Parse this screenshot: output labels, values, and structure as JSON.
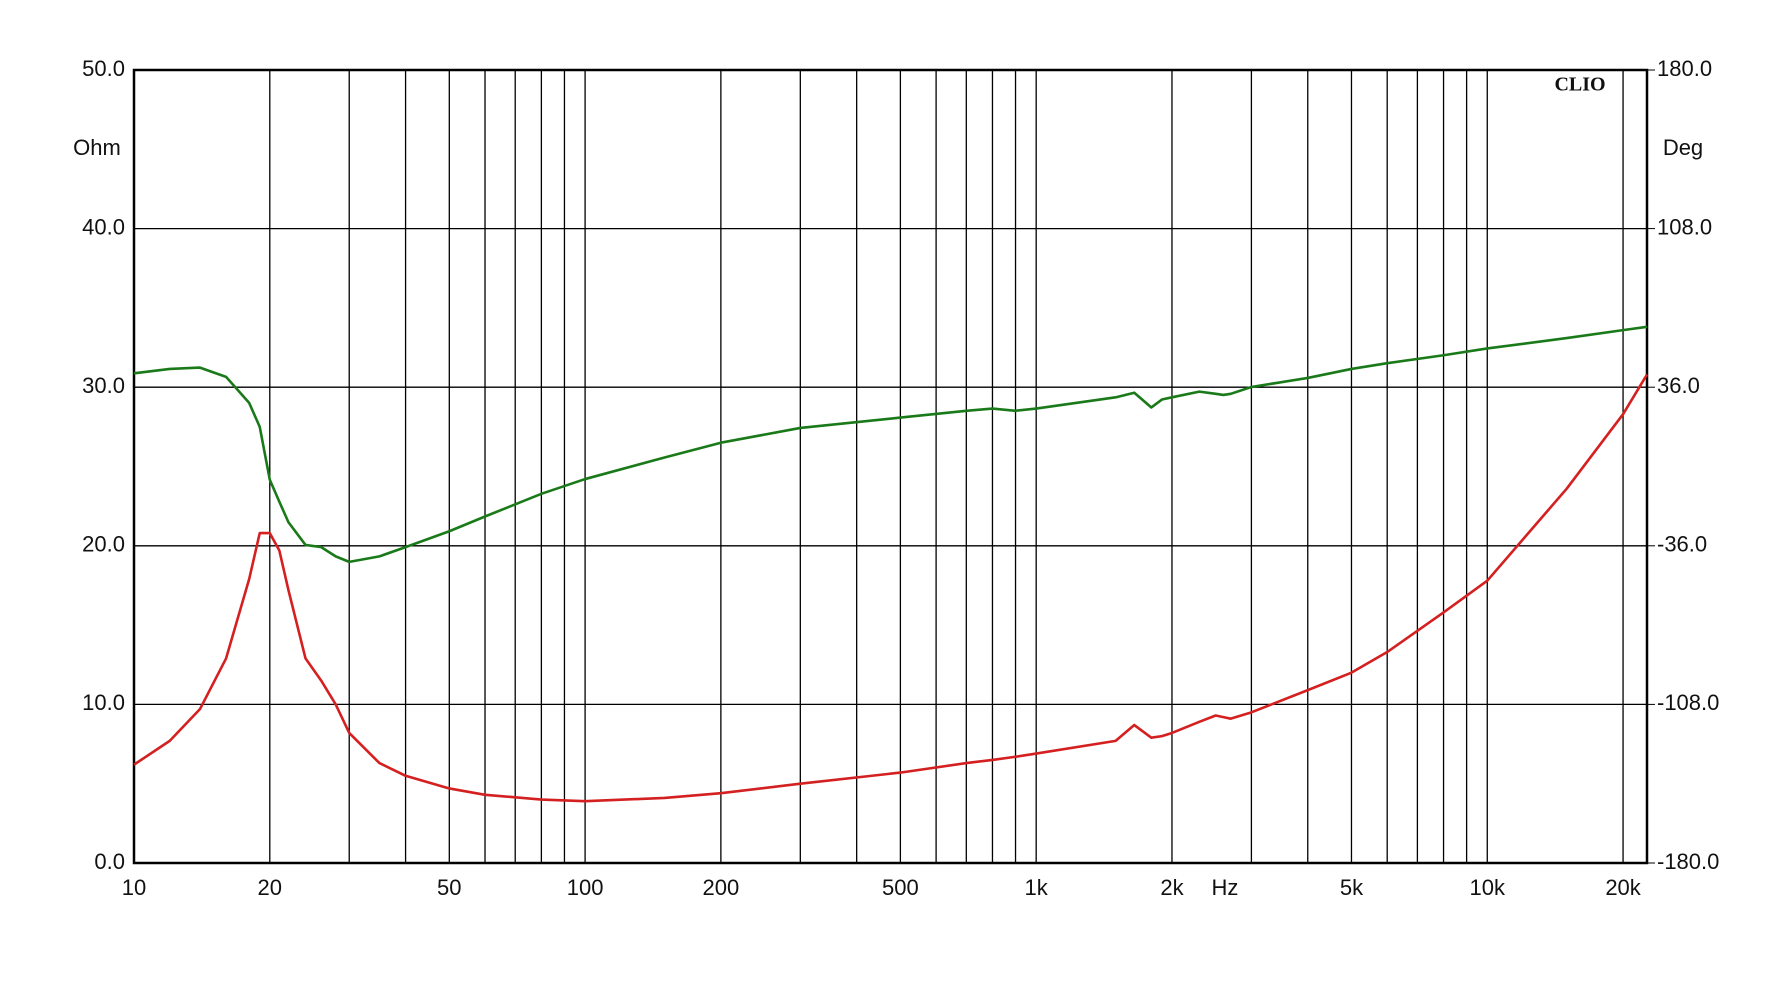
{
  "chart_data": {
    "type": "line",
    "watermark": "CLIO",
    "xlabel": "Hz",
    "ylabel": "Ohm",
    "y2label": "Deg",
    "xscale": "log",
    "xlim": [
      10,
      22600
    ],
    "xticks": [
      10,
      20,
      50,
      100,
      200,
      500,
      {
        "value": 1000,
        "label": "1k"
      },
      {
        "value": 2000,
        "label": "2k"
      },
      {
        "value": 5000,
        "label": "5k"
      },
      {
        "value": 10000,
        "label": "10k"
      },
      {
        "value": 20000,
        "label": "20k"
      }
    ],
    "xminor": [
      30,
      40,
      60,
      70,
      80,
      90,
      300,
      400,
      600,
      700,
      800,
      900,
      3000,
      4000,
      6000,
      7000,
      8000,
      9000
    ],
    "ylim": [
      0,
      50
    ],
    "yticks": [
      {
        "value": 0,
        "label": "0.0"
      },
      {
        "value": 10,
        "label": "10.0"
      },
      {
        "value": 20,
        "label": "20.0"
      },
      {
        "value": 30,
        "label": "30.0"
      },
      {
        "value": 40,
        "label": "40.0"
      },
      {
        "value": 50,
        "label": "50.0"
      }
    ],
    "y2lim": [
      -180,
      180
    ],
    "y2ticks": [
      {
        "value": -180,
        "label": "-180.0"
      },
      {
        "value": -108,
        "label": "-108.0"
      },
      {
        "value": -36,
        "label": "-36.0"
      },
      {
        "value": 36,
        "label": "36.0"
      },
      {
        "value": 108,
        "label": "108.0"
      },
      {
        "value": 180,
        "label": "180.0"
      }
    ],
    "grid": true,
    "x": [
      10,
      12,
      14,
      16,
      18,
      19,
      20,
      21,
      22,
      24,
      26,
      28,
      30,
      35,
      40,
      50,
      60,
      80,
      100,
      150,
      200,
      300,
      500,
      700,
      800,
      900,
      1000,
      1500,
      1650,
      1800,
      1900,
      2000,
      2300,
      2500,
      2600,
      2700,
      3000,
      4000,
      5000,
      6000,
      8000,
      10000,
      15000,
      20000,
      22600
    ],
    "series": [
      {
        "color": "#d42020",
        "values": [
          6.2,
          7.7,
          9.7,
          12.9,
          17.9,
          20.8,
          20.8,
          19.7,
          17.2,
          12.9,
          11.5,
          10.0,
          8.2,
          6.3,
          5.5,
          4.7,
          4.3,
          4.0,
          3.9,
          4.1,
          4.4,
          5.0,
          5.7,
          6.3,
          6.5,
          6.7,
          6.9,
          7.7,
          8.7,
          7.9,
          8.0,
          8.2,
          8.9,
          9.3,
          9.2,
          9.1,
          9.5,
          10.9,
          12.0,
          13.3,
          15.8,
          17.8,
          23.6,
          28.3,
          30.8
        ]
      },
      {
        "color": "#1a7a1a",
        "axis": "y2",
        "values": [
          42.3,
          44.3,
          44.9,
          40.7,
          28.9,
          18,
          -6,
          -16,
          -25.3,
          -35.6,
          -36.6,
          -40.8,
          -43.3,
          -40.8,
          -36.6,
          -29.4,
          -22.7,
          -12.4,
          -5.7,
          4.1,
          10.8,
          17.5,
          22.2,
          25.3,
          26.3,
          25.3,
          26.3,
          31.4,
          33.5,
          26.8,
          30.4,
          31.4,
          34,
          33,
          32.5,
          33,
          36.1,
          40.2,
          44.3,
          46.9,
          50.5,
          53.6,
          58.3,
          61.9,
          63.4
        ]
      }
    ]
  }
}
